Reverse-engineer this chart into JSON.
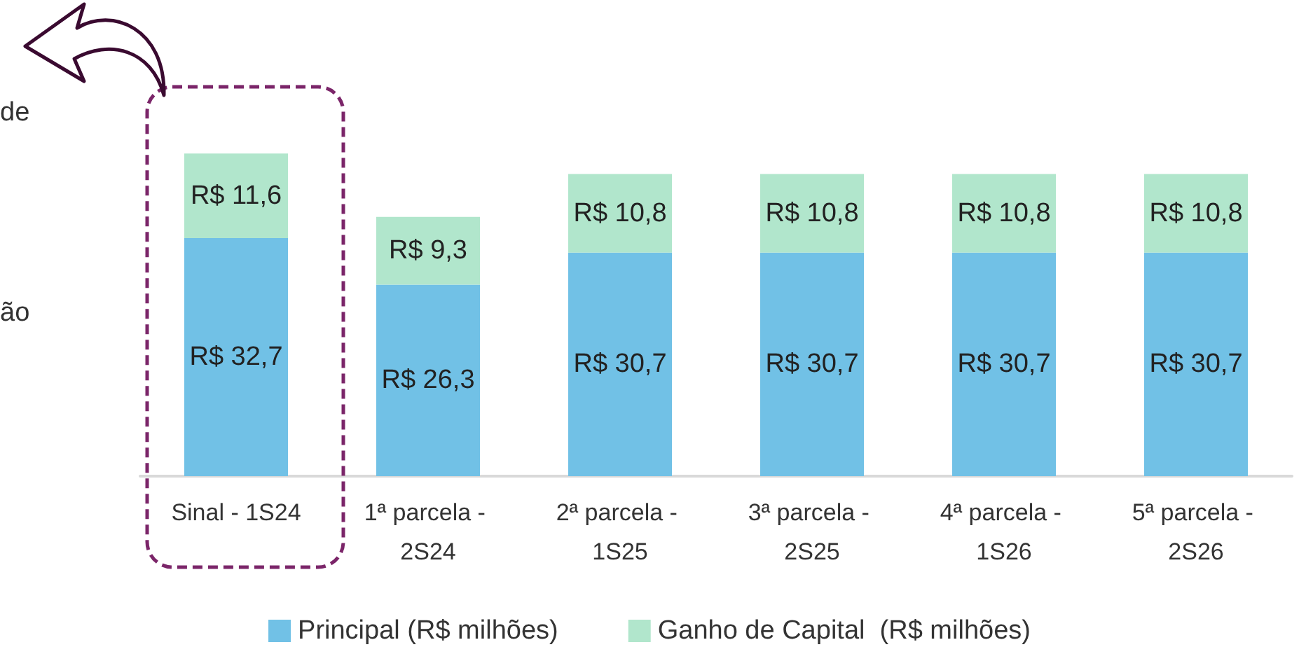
{
  "chart_data": {
    "type": "bar",
    "stacked": true,
    "categories": [
      "Sinal - 1S24",
      "1ª parcela - 2S24",
      "2ª parcela - 1S25",
      "3ª parcela - 2S25",
      "4ª parcela - 1S26",
      "5ª parcela - 2S26"
    ],
    "series": [
      {
        "name": "Principal (R$ milhões)",
        "color": "#71c1e6",
        "values": [
          32.7,
          26.3,
          30.7,
          30.7,
          30.7,
          30.7
        ],
        "value_labels": [
          "R$ 32,7",
          "R$ 26,3",
          "R$ 30,7",
          "R$ 30,7",
          "R$ 30,7",
          "R$ 30,7"
        ]
      },
      {
        "name": "Ganho de Capital  (R$ milhões)",
        "color": "#b1e6cc",
        "values": [
          11.6,
          9.3,
          10.8,
          10.8,
          10.8,
          10.8
        ],
        "value_labels": [
          "R$ 11,6",
          "R$ 9,3",
          "R$ 10,8",
          "R$ 10,8",
          "R$ 10,8",
          "R$ 10,8"
        ]
      }
    ],
    "legend": "bottom",
    "annotations": [
      "de",
      "ão"
    ]
  }
}
